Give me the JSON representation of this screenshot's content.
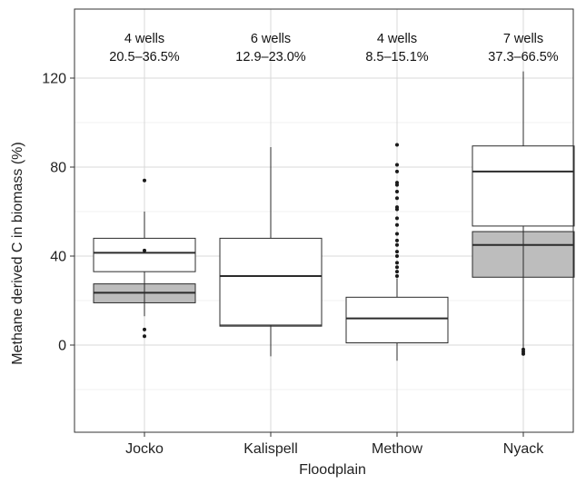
{
  "chart_data": {
    "type": "boxplot",
    "xlabel": "Floodplain",
    "ylabel": "Methane derived C in biomass (%)",
    "ylim": [
      -50,
      145
    ],
    "yticks": [
      0,
      40,
      80,
      120
    ],
    "minor_gridlines": [
      -20,
      20,
      60,
      100
    ],
    "grid": true,
    "colors": {
      "upper_box_fill": "#ffffff",
      "lower_box_fill": "#bdbdbd",
      "stroke": "#2b2b2b",
      "grid": "#d9d9d9"
    },
    "categories": [
      "Jocko",
      "Kalispell",
      "Methow",
      "Nyack"
    ],
    "annotations": [
      {
        "wells": "4 wells",
        "range": "20.5–36.5%"
      },
      {
        "wells": "6 wells",
        "range": "12.9–23.0%"
      },
      {
        "wells": "4 wells",
        "range": "8.5–15.1%"
      },
      {
        "wells": "7 wells",
        "range": "37.3–66.5%"
      }
    ],
    "series": [
      {
        "name": "upper",
        "boxes": [
          {
            "q1": 33,
            "median": 41.5,
            "q3": 48,
            "whisker_low": 13,
            "whisker_high": 60,
            "outliers": [
              74,
              42.5,
              7,
              4
            ]
          },
          {
            "q1": 9,
            "median": 31,
            "q3": 48,
            "whisker_low": -5,
            "whisker_high": 89,
            "outliers": []
          },
          {
            "q1": 1,
            "median": 12,
            "q3": 21.5,
            "whisker_low": -7,
            "whisker_high": 30,
            "outliers": [
              90,
              81,
              78,
              73,
              72,
              69,
              66,
              62,
              61,
              57,
              54,
              50,
              47,
              45,
              42,
              40,
              37,
              35,
              33,
              31
            ]
          },
          {
            "q1": 53.5,
            "median": 78,
            "q3": 89.5,
            "whisker_low": -2,
            "whisker_high": 123,
            "outliers": [
              -2,
              -3,
              -4
            ]
          }
        ]
      },
      {
        "name": "lower",
        "boxes": [
          {
            "q1": 19,
            "median": 23.5,
            "q3": 27.5,
            "whisker_low": 13,
            "whisker_high": 30,
            "outliers": []
          },
          {
            "q1": 8.5,
            "median": 17.5,
            "q3": 27,
            "whisker_low": -5,
            "whisker_high": 38,
            "outliers": []
          },
          {
            "q1": 1,
            "median": 4,
            "q3": 12,
            "whisker_low": -7,
            "whisker_high": 30,
            "outliers": []
          },
          {
            "q1": 30.5,
            "median": 45,
            "q3": 51,
            "whisker_low": -2,
            "whisker_high": 70,
            "outliers": []
          }
        ]
      }
    ]
  }
}
